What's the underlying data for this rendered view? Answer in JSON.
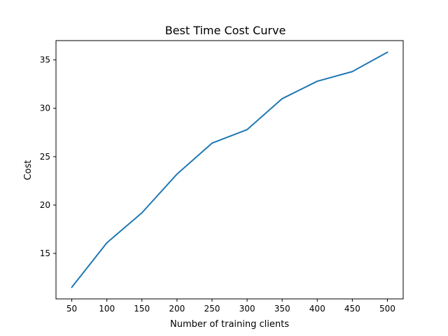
{
  "chart_data": {
    "type": "line",
    "title": "Best Time Cost Curve",
    "xlabel": "Number of training clients",
    "ylabel": "Cost",
    "x": [
      50,
      100,
      150,
      200,
      250,
      300,
      350,
      400,
      450,
      500
    ],
    "series": [
      {
        "values": [
          11.5,
          16.1,
          19.2,
          23.2,
          26.4,
          27.8,
          31.0,
          32.8,
          33.8,
          35.8
        ]
      }
    ],
    "xlim": [
      27.5,
      522.5
    ],
    "ylim": [
      10.3,
      37.0
    ],
    "xticks": [
      50,
      100,
      150,
      200,
      250,
      300,
      350,
      400,
      450,
      500
    ],
    "yticks": [
      15,
      20,
      25,
      30,
      35
    ],
    "grid": false,
    "colors": {
      "series": "#1f77b4",
      "axes": "#000000"
    }
  }
}
